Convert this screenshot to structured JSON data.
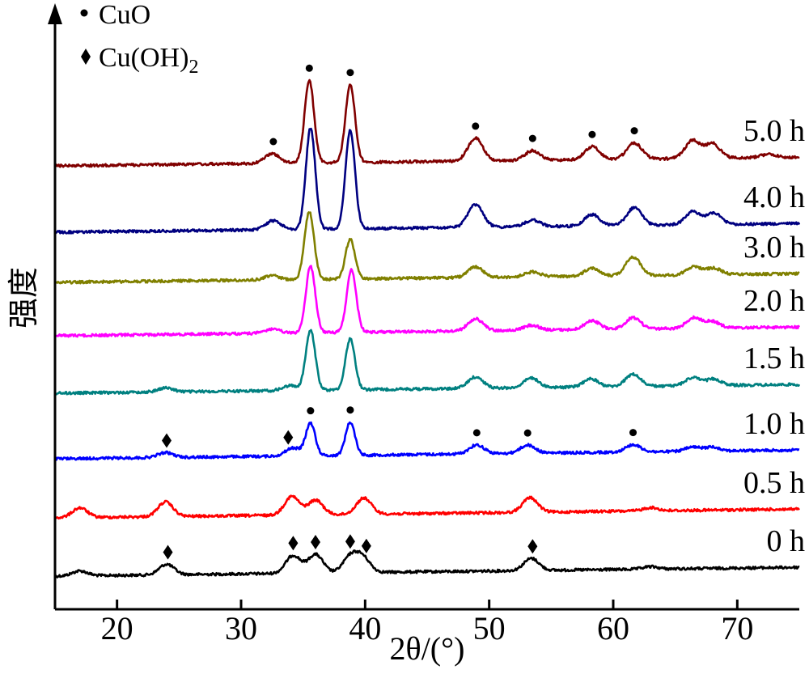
{
  "chart_data": {
    "type": "line",
    "title": "",
    "xlabel": "2θ/(°)",
    "ylabel": "强度",
    "xlim": [
      15,
      75
    ],
    "xticks": [
      20,
      30,
      40,
      50,
      60,
      70
    ],
    "legend": {
      "position": "top-left",
      "entries": [
        {
          "marker": "circle",
          "label": "CuO"
        },
        {
          "marker": "diamond",
          "label": "Cu(OH)",
          "label_sub": "2"
        }
      ]
    },
    "series": [
      {
        "name": "0 h",
        "color": "#000000",
        "offset": 0,
        "peaks": [
          [
            17.0,
            6
          ],
          [
            24.0,
            13
          ],
          [
            34.2,
            22
          ],
          [
            36.0,
            23
          ],
          [
            38.8,
            19
          ],
          [
            39.8,
            18
          ],
          [
            53.4,
            15
          ],
          [
            63.0,
            3
          ]
        ],
        "markers": [
          {
            "x": 24.1,
            "type": "diamond"
          },
          {
            "x": 34.2,
            "type": "diamond"
          },
          {
            "x": 36.0,
            "type": "diamond"
          },
          {
            "x": 38.8,
            "type": "diamond"
          },
          {
            "x": 40.1,
            "type": "diamond"
          },
          {
            "x": 53.5,
            "type": "diamond"
          }
        ]
      },
      {
        "name": "0.5 h",
        "color": "#ff0000",
        "offset": 72,
        "peaks": [
          [
            17.0,
            12
          ],
          [
            23.9,
            18
          ],
          [
            34.1,
            23
          ],
          [
            36.0,
            18
          ],
          [
            39.9,
            20
          ],
          [
            53.3,
            18
          ],
          [
            63.0,
            4
          ]
        ],
        "markers": []
      },
      {
        "name": "1.0 h",
        "color": "#0000ff",
        "offset": 145,
        "peaks": [
          [
            23.9,
            6
          ],
          [
            34.2,
            10
          ],
          [
            35.6,
            40
          ],
          [
            38.8,
            41
          ],
          [
            49.0,
            11
          ],
          [
            53.1,
            10
          ],
          [
            61.6,
            9
          ],
          [
            66.4,
            5
          ],
          [
            68.0,
            5
          ]
        ],
        "markers": [
          {
            "x": 24.0,
            "type": "diamond"
          },
          {
            "x": 33.8,
            "type": "diamond"
          },
          {
            "x": 35.6,
            "type": "circle"
          },
          {
            "x": 38.8,
            "type": "circle"
          },
          {
            "x": 49.0,
            "type": "circle"
          },
          {
            "x": 53.1,
            "type": "circle"
          },
          {
            "x": 61.6,
            "type": "circle"
          }
        ]
      },
      {
        "name": "1.5 h",
        "color": "#008080",
        "offset": 226,
        "peaks": [
          [
            23.9,
            5
          ],
          [
            34.0,
            6
          ],
          [
            35.6,
            74
          ],
          [
            38.8,
            63
          ],
          [
            48.9,
            14
          ],
          [
            53.4,
            12
          ],
          [
            58.2,
            10
          ],
          [
            61.6,
            15
          ],
          [
            66.4,
            10
          ],
          [
            68.1,
            8
          ]
        ],
        "markers": []
      },
      {
        "name": "2.0 h",
        "color": "#ff00ff",
        "offset": 297,
        "peaks": [
          [
            32.5,
            5
          ],
          [
            35.6,
            82
          ],
          [
            38.9,
            77
          ],
          [
            48.9,
            15
          ],
          [
            53.4,
            6
          ],
          [
            58.3,
            11
          ],
          [
            61.6,
            14
          ],
          [
            66.5,
            13
          ],
          [
            68.0,
            8
          ]
        ],
        "markers": []
      },
      {
        "name": "3.0 h",
        "color": "#808000",
        "offset": 363,
        "peaks": [
          [
            32.5,
            5
          ],
          [
            35.5,
            84
          ],
          [
            38.8,
            49
          ],
          [
            48.9,
            13
          ],
          [
            53.5,
            6
          ],
          [
            58.3,
            10
          ],
          [
            61.6,
            23
          ],
          [
            66.5,
            10
          ],
          [
            68.1,
            8
          ]
        ],
        "markers": []
      },
      {
        "name": "4.0 h",
        "color": "#000080",
        "offset": 425,
        "peaks": [
          [
            32.6,
            11
          ],
          [
            35.6,
            125
          ],
          [
            38.8,
            122
          ],
          [
            48.9,
            28
          ],
          [
            53.5,
            8
          ],
          [
            58.3,
            14
          ],
          [
            61.7,
            22
          ],
          [
            66.4,
            16
          ],
          [
            68.1,
            14
          ]
        ],
        "markers": []
      },
      {
        "name": "5.0 h",
        "color": "#800000",
        "offset": 507,
        "peaks": [
          [
            32.5,
            12
          ],
          [
            35.5,
            102
          ],
          [
            38.8,
            96
          ],
          [
            48.9,
            28
          ],
          [
            53.5,
            12
          ],
          [
            58.3,
            16
          ],
          [
            61.7,
            20
          ],
          [
            66.4,
            22
          ],
          [
            68.0,
            18
          ],
          [
            72.5,
            4
          ]
        ],
        "markers": [
          {
            "x": 32.6,
            "type": "circle"
          },
          {
            "x": 35.5,
            "type": "circle"
          },
          {
            "x": 38.8,
            "type": "circle"
          },
          {
            "x": 48.9,
            "type": "circle"
          },
          {
            "x": 53.5,
            "type": "circle"
          },
          {
            "x": 58.3,
            "type": "circle"
          },
          {
            "x": 61.7,
            "type": "circle"
          }
        ]
      }
    ]
  }
}
